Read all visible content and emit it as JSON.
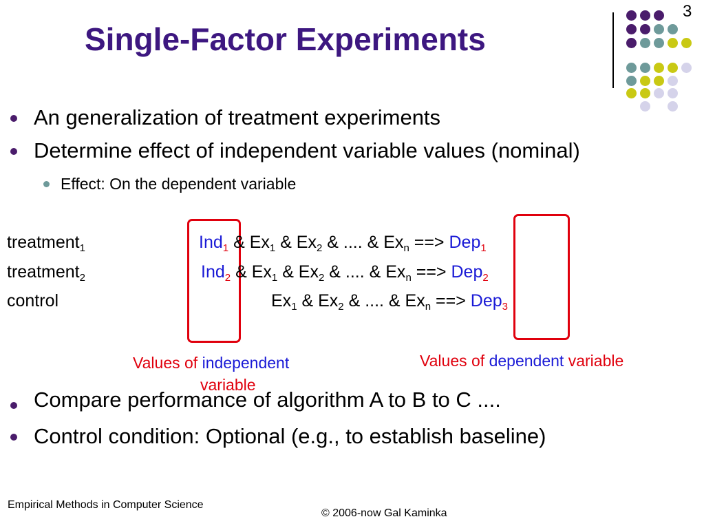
{
  "slide": {
    "title": "Single-Factor Experiments",
    "number": "3"
  },
  "decor": {
    "dot_colors": {
      "purple": "#4a1c6b",
      "teal": "#6e9a9a",
      "yellow": "#c9c914",
      "lavender": "#d5d3ea"
    }
  },
  "bullets_top": [
    "An generalization of treatment experiments",
    "Determine effect of independent variable values (nominal)"
  ],
  "sub_bullet": "Effect: On the dependent variable",
  "rows": [
    {
      "label": "treatment",
      "label_sub": "1",
      "ind": "Ind",
      "ind_sub": "1",
      "amp": "&",
      "ex1": "Ex",
      "ex1_sub": "1",
      "amp_ex2": "& Ex",
      "ex2_sub": "2",
      "dots_exn": "& .... & Ex",
      "exn_sub": "n",
      "arrow": "==>",
      "dep": "Dep",
      "dep_sub": "1"
    },
    {
      "label": "treatment",
      "label_sub": "2",
      "ind": "Ind",
      "ind_sub": "2",
      "amp": "&",
      "ex1": "Ex",
      "ex1_sub": "1",
      "amp_ex2": "& Ex",
      "ex2_sub": "2",
      "dots_exn": "& .... & Ex",
      "exn_sub": "n",
      "arrow": "==>",
      "dep": "Dep",
      "dep_sub": "2"
    },
    {
      "label": "control",
      "ex1": "Ex",
      "ex1_sub": "1",
      "amp_ex2": "& Ex",
      "ex2_sub": "2",
      "dots_exn": "& .... & Ex",
      "exn_sub": "n",
      "arrow": "==>",
      "dep": "Dep",
      "dep_sub": "3"
    }
  ],
  "captions": {
    "ind_prefix": "Values of",
    "ind_word": "independent",
    "ind_suffix": "variable",
    "dep_prefix": "Values of",
    "dep_word": "dependent",
    "dep_suffix": "variable"
  },
  "bullets_bottom": [
    "Compare performance of algorithm A to B to C ....",
    "Control condition: Optional (e.g., to establish baseline)"
  ],
  "footer": {
    "left": "Empirical Methods in Computer Science",
    "right": "© 2006-now  Gal Kaminka"
  }
}
